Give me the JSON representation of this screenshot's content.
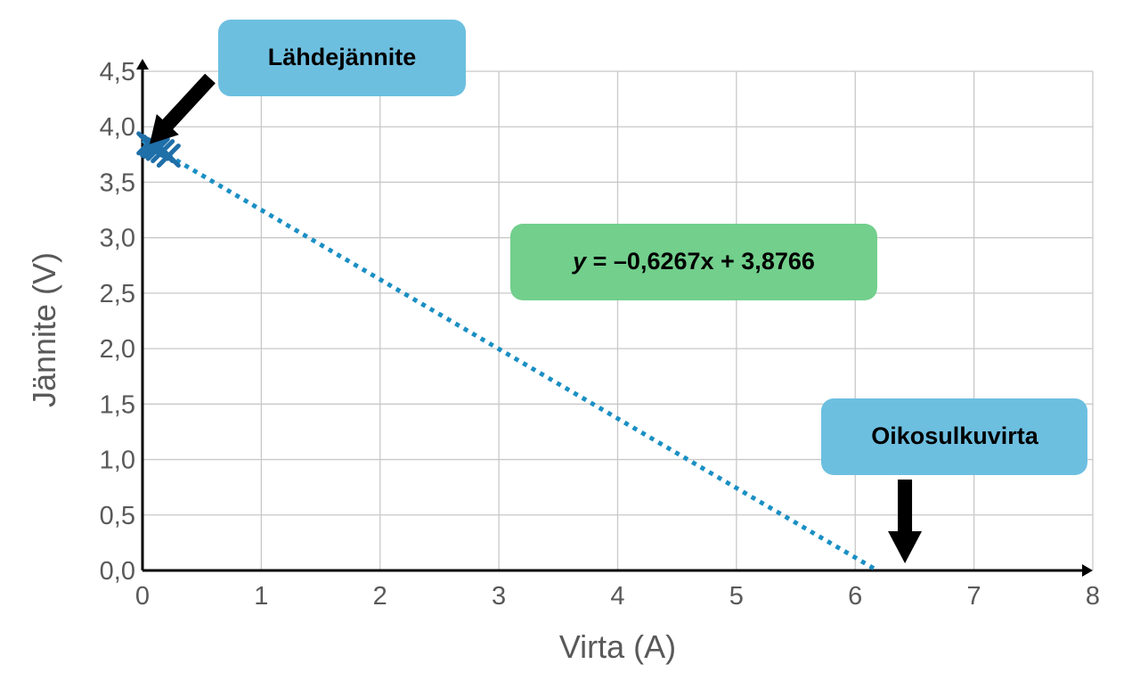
{
  "chart_data": {
    "type": "scatter",
    "xlabel": "Virta (A)",
    "ylabel": "Jännite (V)",
    "xlim": [
      0,
      8
    ],
    "ylim": [
      0,
      4.5
    ],
    "x_ticks": [
      "0",
      "1",
      "2",
      "3",
      "4",
      "5",
      "6",
      "7",
      "8"
    ],
    "y_ticks": [
      "0,0",
      "0,5",
      "1,0",
      "1,5",
      "2,0",
      "2,5",
      "3,0",
      "3,5",
      "4,0",
      "4,5"
    ],
    "grid": true,
    "series": [
      {
        "marker": "x",
        "color": "#1f6fa8",
        "points": [
          {
            "x": 0.05,
            "y": 3.85
          },
          {
            "x": 0.08,
            "y": 3.83
          },
          {
            "x": 0.1,
            "y": 3.82
          },
          {
            "x": 0.13,
            "y": 3.8
          },
          {
            "x": 0.17,
            "y": 3.78
          },
          {
            "x": 0.22,
            "y": 3.74
          }
        ]
      }
    ],
    "trendline": {
      "style": "dotted",
      "color": "#1a8fc4",
      "slope": -0.6267,
      "intercept": 3.8766,
      "x_range": [
        0,
        6.186
      ]
    },
    "annotations": [
      {
        "id": "source-voltage",
        "label": "Lähdejännite",
        "color": "#6dbfe0",
        "points_to": {
          "x": 0,
          "y": 3.8766
        }
      },
      {
        "id": "equation",
        "label_prefix": "y",
        "label_rest": " = –0,6267x + 3,8766",
        "color": "#72cf8c"
      },
      {
        "id": "short-circuit",
        "label": "Oikosulkuvirta",
        "color": "#6dbfe0",
        "points_to": {
          "x": 6.186,
          "y": 0
        }
      }
    ]
  }
}
